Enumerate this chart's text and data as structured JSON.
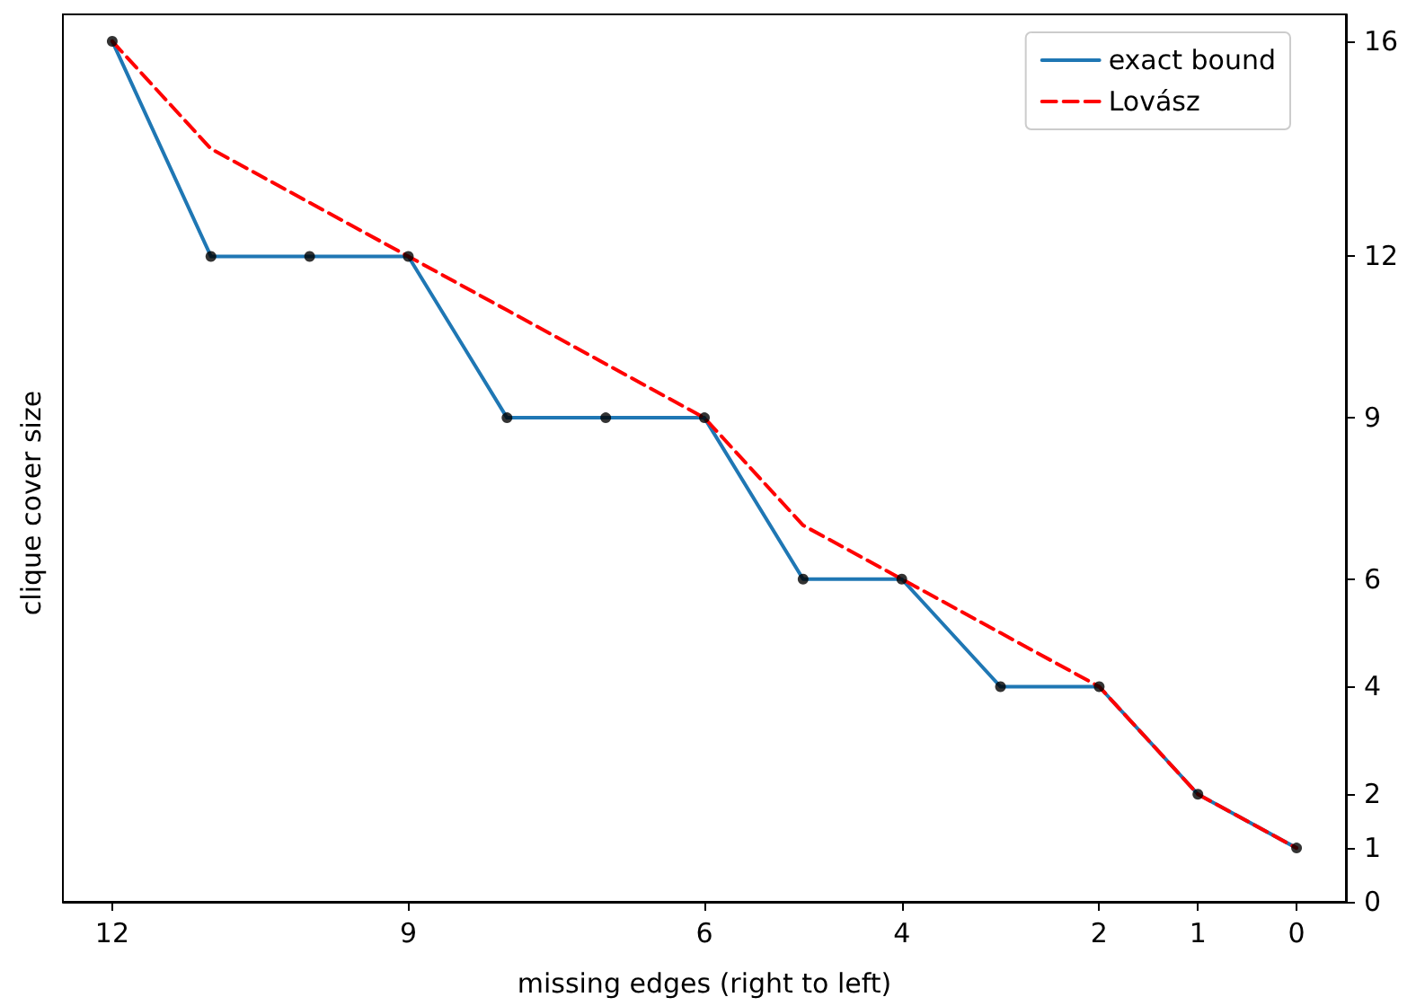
{
  "chart_data": {
    "type": "line",
    "xlabel": "missing edges (right to left)",
    "ylabel": "clique cover size",
    "x": [
      12,
      11,
      10,
      9,
      8,
      7,
      6,
      5,
      4,
      3,
      2,
      1,
      0
    ],
    "series": [
      {
        "name": "exact bound",
        "color": "#1f77b4",
        "values": [
          16,
          12,
          12,
          12,
          9,
          9,
          9,
          6,
          6,
          4,
          4,
          2,
          1
        ],
        "line_style": "solid",
        "marker": "none"
      },
      {
        "name": "Lovász",
        "color": "#ff0000",
        "values": [
          16,
          14,
          13,
          12,
          11,
          10,
          9,
          7,
          6,
          5,
          4,
          2,
          1
        ],
        "line_style": "dashed",
        "marker": "none"
      },
      {
        "type": "scatter",
        "color": "#000000",
        "values": [
          16,
          12,
          12,
          12,
          9,
          9,
          9,
          6,
          6,
          4,
          4,
          2,
          1
        ],
        "marker": "circle"
      }
    ],
    "xlim": [
      12.5,
      -0.5
    ],
    "xticks": [
      12,
      9,
      6,
      4,
      2,
      1,
      0
    ],
    "ylim": [
      0,
      16.5
    ],
    "yticks": [
      0,
      1,
      2,
      4,
      6,
      9,
      12,
      16
    ],
    "grid": false,
    "legend": "top right"
  }
}
